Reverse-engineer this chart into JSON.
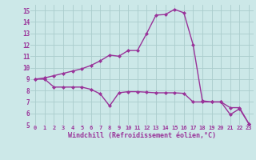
{
  "line1_x": [
    0,
    1,
    2,
    3,
    4,
    5,
    6,
    7,
    8,
    9,
    10,
    11,
    12,
    13,
    14,
    15,
    16,
    17,
    18,
    19,
    20,
    21,
    22,
    23
  ],
  "line1_y": [
    9.0,
    9.1,
    9.3,
    9.5,
    9.7,
    9.9,
    10.2,
    10.6,
    11.1,
    11.0,
    11.5,
    11.5,
    13.0,
    14.6,
    14.65,
    15.1,
    14.8,
    12.0,
    7.1,
    7.0,
    7.0,
    6.5,
    6.5,
    5.1
  ],
  "line2_x": [
    0,
    1,
    2,
    3,
    4,
    5,
    6,
    7,
    8,
    9,
    10,
    11,
    12,
    13,
    14,
    15,
    16,
    17,
    18,
    19,
    20,
    21,
    22,
    23
  ],
  "line2_y": [
    9.0,
    9.0,
    8.3,
    8.3,
    8.3,
    8.3,
    8.1,
    7.7,
    6.65,
    7.8,
    7.9,
    7.9,
    7.85,
    7.8,
    7.8,
    7.8,
    7.75,
    7.0,
    7.0,
    7.0,
    7.0,
    5.9,
    6.4,
    5.1
  ],
  "line_color": "#993399",
  "bg_color": "#cce8e8",
  "grid_color": "#aacccc",
  "xlabel": "Windchill (Refroidissement éolien,°C)",
  "xlabel_fontsize": 6,
  "xtick_labels": [
    "0",
    "1",
    "2",
    "3",
    "4",
    "5",
    "6",
    "7",
    "8",
    "9",
    "10",
    "11",
    "12",
    "13",
    "14",
    "15",
    "16",
    "17",
    "18",
    "19",
    "20",
    "21",
    "22",
    "23"
  ],
  "ytick_labels": [
    "5",
    "6",
    "7",
    "8",
    "9",
    "10",
    "11",
    "12",
    "13",
    "14",
    "15"
  ],
  "ylim": [
    5,
    15.5
  ],
  "xlim": [
    -0.5,
    23.5
  ],
  "marker": "D",
  "markersize": 2.0,
  "linewidth": 1.0
}
